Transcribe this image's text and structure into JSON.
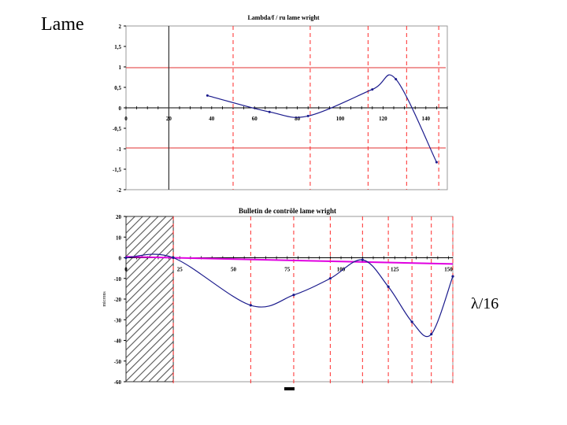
{
  "slide": {
    "title": "Lame",
    "side_label": "λ/16"
  },
  "chart_data": [
    {
      "type": "line",
      "title": "Lambda/f / ru lame wright",
      "xlabel": "",
      "ylabel": "",
      "xlim": [
        0,
        150
      ],
      "ylim": [
        -2,
        2
      ],
      "x_ticks": [
        0,
        20,
        40,
        60,
        80,
        100,
        120,
        140
      ],
      "y_ticks": [
        2,
        1.5,
        1,
        0.5,
        0,
        -0.5,
        -1,
        -1.5,
        -2
      ],
      "y_tick_labels": [
        "2",
        "1,5",
        "1",
        "0,5",
        "0",
        "-0,5",
        "-1",
        "-1,5",
        "-2"
      ],
      "series": [
        {
          "x": [
            38,
            67,
            85,
            115,
            126,
            145
          ],
          "y": [
            0.3,
            -0.1,
            -0.2,
            0.45,
            0.7,
            -1.33
          ]
        }
      ],
      "tolerance_lines": [
        0.98,
        -0.98
      ],
      "vertical_solid": [
        20
      ],
      "vertical_dashed": [
        50,
        86,
        113,
        131,
        146
      ],
      "grid": false,
      "colors": {
        "curve": "#1a1a8c",
        "tolerance": "#e03030",
        "dashed": "#ff2a2a",
        "solid_vertical": "#333333"
      }
    },
    {
      "type": "line",
      "title": "Bulletin de contrôle lame wright",
      "xlabel": "",
      "ylabel": "microns",
      "xlim": [
        0,
        152
      ],
      "ylim": [
        -60,
        20
      ],
      "x_ticks": [
        0,
        25,
        50,
        75,
        100,
        125,
        150
      ],
      "y_ticks": [
        20,
        10,
        0,
        -10,
        -20,
        -30,
        -40,
        -50,
        -60
      ],
      "series": [
        {
          "x": [
            0,
            22,
            58,
            78,
            95,
            110,
            122,
            133,
            142,
            152
          ],
          "y": [
            0,
            0,
            -23,
            -18,
            -10,
            -1,
            -14,
            -31,
            -37,
            -9
          ]
        },
        {
          "x": [
            0,
            152
          ],
          "y": [
            0.5,
            -3
          ]
        }
      ],
      "hatched_region": [
        0,
        22
      ],
      "vertical_dashed": [
        22,
        58,
        78,
        95,
        110,
        122,
        133,
        142,
        152
      ],
      "grid": false,
      "colors": {
        "curve": "#1a1a8c",
        "reference": "#e000e0",
        "dashed": "#ff2a2a"
      }
    }
  ]
}
